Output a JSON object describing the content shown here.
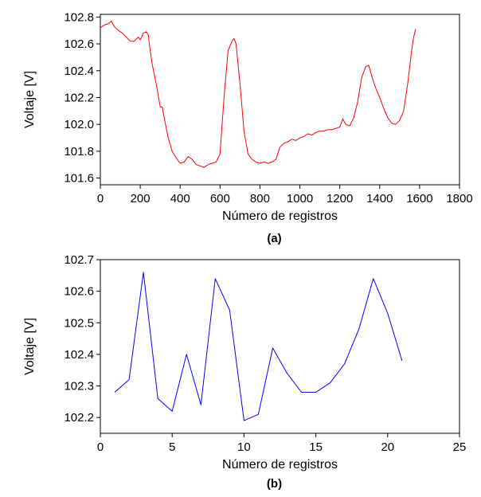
{
  "chart_data": [
    {
      "type": "line",
      "caption": "(a)",
      "xlabel": "Número de registros",
      "ylabel": "Voltaje [V]",
      "xlim": [
        0,
        1800
      ],
      "ylim": [
        101.55,
        102.82
      ],
      "xticks": [
        "0",
        "200",
        "400",
        "600",
        "800",
        "1000",
        "1200",
        "1400",
        "1600",
        "1800"
      ],
      "yticks": [
        "101.6",
        "101.8",
        "102.0",
        "102.2",
        "102.4",
        "102.6",
        "102.8"
      ],
      "line_color": "#ff0000",
      "series": [
        {
          "x": [
            0,
            20,
            40,
            55,
            70,
            90,
            110,
            130,
            150,
            170,
            190,
            200,
            215,
            230,
            240,
            250,
            260,
            280,
            300,
            310,
            320,
            340,
            360,
            380,
            400,
            420,
            440,
            460,
            480,
            500,
            520,
            540,
            560,
            580,
            600,
            620,
            640,
            660,
            670,
            680,
            700,
            720,
            740,
            760,
            780,
            800,
            820,
            840,
            860,
            880,
            900,
            920,
            940,
            960,
            980,
            1000,
            1020,
            1040,
            1060,
            1080,
            1100,
            1120,
            1140,
            1160,
            1180,
            1200,
            1215,
            1230,
            1250,
            1270,
            1290,
            1310,
            1330,
            1345,
            1360,
            1380,
            1400,
            1420,
            1440,
            1460,
            1480,
            1500,
            1520,
            1540,
            1560,
            1570,
            1580
          ],
          "y": [
            102.72,
            102.74,
            102.75,
            102.77,
            102.73,
            102.7,
            102.68,
            102.65,
            102.62,
            102.62,
            102.65,
            102.63,
            102.68,
            102.69,
            102.67,
            102.55,
            102.45,
            102.3,
            102.13,
            102.13,
            102.05,
            101.9,
            101.8,
            101.75,
            101.71,
            101.72,
            101.76,
            101.74,
            101.7,
            101.69,
            101.68,
            101.7,
            101.71,
            101.72,
            101.78,
            102.2,
            102.55,
            102.62,
            102.64,
            102.6,
            102.3,
            101.95,
            101.78,
            101.74,
            101.72,
            101.71,
            101.72,
            101.71,
            101.72,
            101.74,
            101.83,
            101.86,
            101.87,
            101.89,
            101.88,
            101.9,
            101.91,
            101.93,
            101.92,
            101.94,
            101.95,
            101.95,
            101.96,
            101.96,
            101.97,
            101.98,
            102.04,
            102.0,
            101.99,
            102.05,
            102.17,
            102.35,
            102.43,
            102.44,
            102.36,
            102.27,
            102.2,
            102.12,
            102.05,
            102.01,
            102.0,
            102.03,
            102.1,
            102.3,
            102.55,
            102.65,
            102.71
          ]
        }
      ]
    },
    {
      "type": "line",
      "caption": "(b)",
      "xlabel": "Número de registros",
      "ylabel": "Voltaje [V]",
      "xlim": [
        0,
        25
      ],
      "ylim": [
        102.15,
        102.7
      ],
      "xticks": [
        "0",
        "5",
        "10",
        "15",
        "20",
        "25"
      ],
      "yticks": [
        "102.2",
        "102.3",
        "102.4",
        "102.5",
        "102.6",
        "102.7"
      ],
      "line_color": "#0000ff",
      "series": [
        {
          "x": [
            1,
            2,
            3,
            4,
            5,
            6,
            7,
            8,
            9,
            10,
            11,
            12,
            13,
            14,
            15,
            16,
            17,
            18,
            19,
            20,
            21
          ],
          "y": [
            102.28,
            102.32,
            102.66,
            102.26,
            102.22,
            102.4,
            102.24,
            102.64,
            102.54,
            102.19,
            102.21,
            102.42,
            102.34,
            102.28,
            102.28,
            102.31,
            102.37,
            102.48,
            102.64,
            102.53,
            102.38
          ]
        }
      ]
    }
  ]
}
